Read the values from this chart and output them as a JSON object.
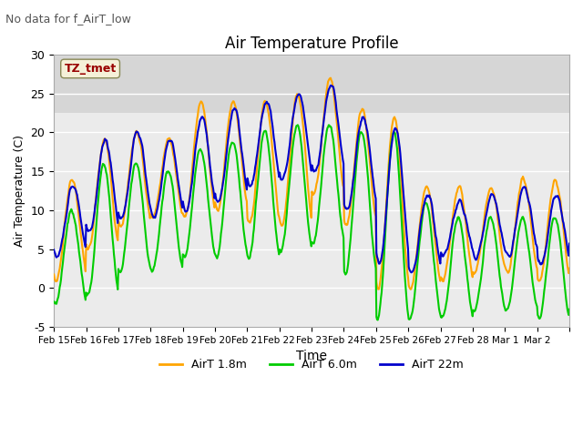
{
  "title": "Air Temperature Profile",
  "subtitle": "No data for f_AirT_low",
  "xlabel": "Time",
  "ylabel": "Air Temperature (C)",
  "ylim": [
    -5,
    30
  ],
  "xlim": [
    0,
    16
  ],
  "background_color": "#ffffff",
  "plot_bg_color": "#ebebeb",
  "shaded_region": [
    22.5,
    30
  ],
  "shaded_color": "#c8c8c8",
  "legend_labels": [
    "AirT 1.8m",
    "AirT 6.0m",
    "AirT 22m"
  ],
  "colors": [
    "#FFA500",
    "#00CC00",
    "#0000CC"
  ],
  "annotation_text": "TZ_tmet",
  "annotation_color": "#990000",
  "annotation_bg": "#f5f0d8",
  "xtick_positions": [
    0,
    1,
    2,
    3,
    4,
    5,
    6,
    7,
    8,
    9,
    10,
    11,
    12,
    13,
    14,
    15,
    16
  ],
  "xtick_labels": [
    "Feb 15",
    "Feb 16",
    "Feb 17",
    "Feb 18",
    "Feb 19",
    "Feb 20",
    "Feb 21",
    "Feb 22",
    "Feb 23",
    "Feb 24",
    "Feb 25",
    "Feb 26",
    "Feb 27",
    "Feb 28",
    "Mar 1",
    "Mar 2",
    ""
  ],
  "ytick_labels": [
    -5,
    0,
    5,
    10,
    15,
    20,
    25,
    30
  ],
  "linewidth": 1.5,
  "peaks_22m": [
    13,
    19,
    20,
    19,
    22,
    23,
    24,
    25,
    26,
    22,
    21,
    12,
    11,
    12,
    13,
    12,
    13
  ],
  "troughs_22m": [
    4,
    7,
    9,
    9,
    10,
    11,
    13,
    14,
    15,
    10,
    3,
    2,
    4,
    4,
    4,
    3,
    5
  ],
  "peaks_1m8": [
    14,
    19,
    20,
    19,
    24,
    24,
    24,
    25,
    27,
    23,
    22,
    13,
    13,
    13,
    14,
    14,
    14
  ],
  "troughs_1m8": [
    1,
    5,
    8,
    9,
    9,
    10,
    8,
    8,
    12,
    8,
    0,
    0,
    1,
    2,
    2,
    1,
    2
  ],
  "peaks_6m": [
    10,
    16,
    16,
    15,
    18,
    19,
    20,
    21,
    21,
    20,
    20,
    11,
    9,
    9,
    9,
    9,
    9
  ],
  "troughs_6m": [
    -2,
    -1,
    2,
    2,
    4,
    4,
    4,
    5,
    6,
    2,
    -4,
    -4,
    -4,
    -3,
    -3,
    -4,
    -3
  ]
}
